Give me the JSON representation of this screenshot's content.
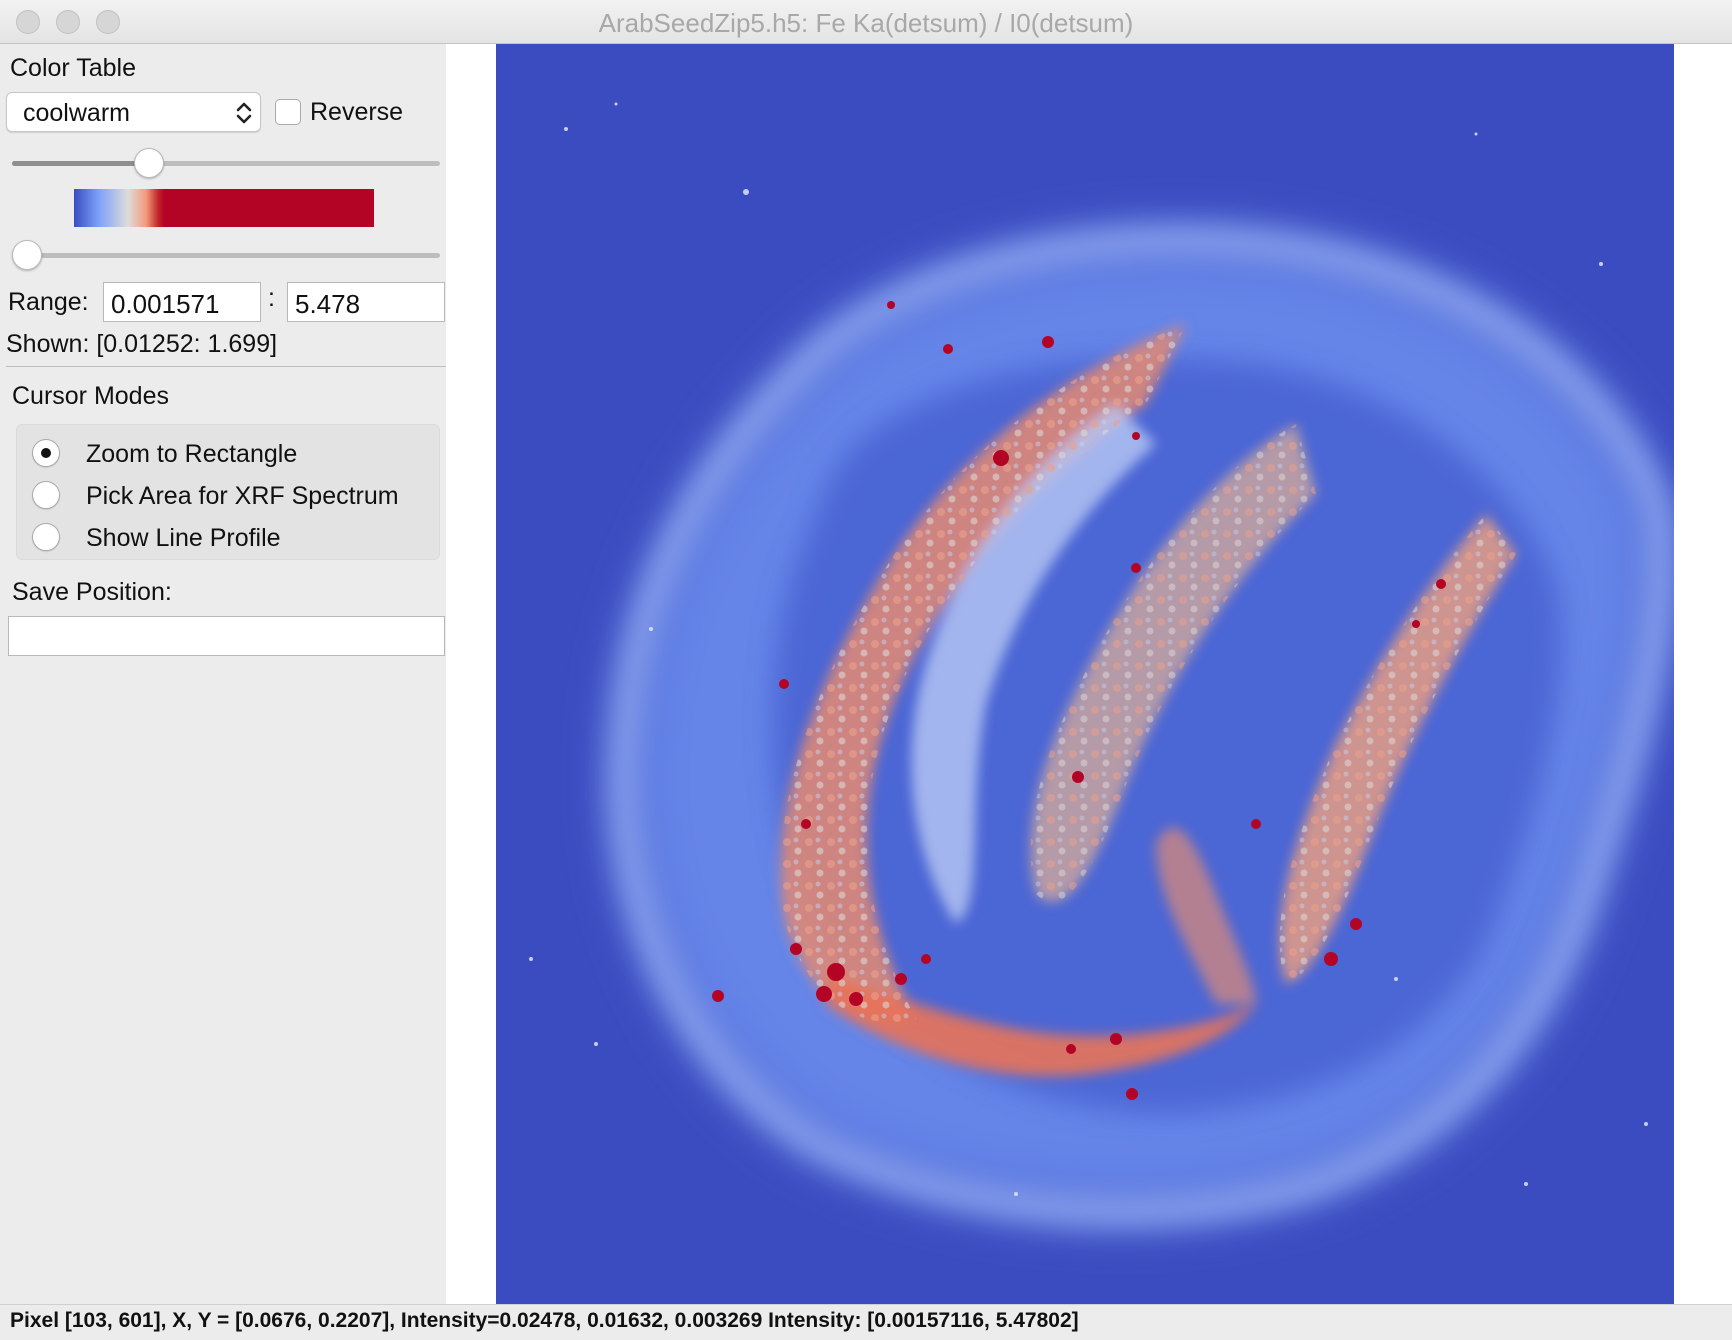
{
  "window": {
    "title": "ArabSeedZip5.h5: Fe Ka(detsum) / I0(detsum)"
  },
  "color_table": {
    "heading": "Color Table",
    "selected": "coolwarm",
    "reverse_label": "Reverse",
    "reverse_checked": false,
    "upper_slider_level": 0.33,
    "lower_slider_level": 0.0,
    "colors": {
      "cool": "#3b4cc0",
      "mid": "#dddcdc",
      "warm": "#b40426"
    }
  },
  "range": {
    "label": "Range:",
    "min": "0.001571",
    "separator": ":",
    "max": "5.478",
    "shown": "Shown: [0.01252: 1.699]"
  },
  "cursor_modes": {
    "heading": "Cursor Modes",
    "options": [
      {
        "label": "Zoom to Rectangle",
        "selected": true
      },
      {
        "label": "Pick Area for XRF Spectrum",
        "selected": false
      },
      {
        "label": "Show Line Profile",
        "selected": false
      }
    ]
  },
  "save_position": {
    "label": "Save Position:",
    "value": ""
  },
  "status": {
    "text": "Pixel [103, 601], X, Y = [0.0676, 0.2207], Intensity=0.02478, 0.01632, 0.003269    Intensity: [0.00157116, 5.47802]"
  }
}
